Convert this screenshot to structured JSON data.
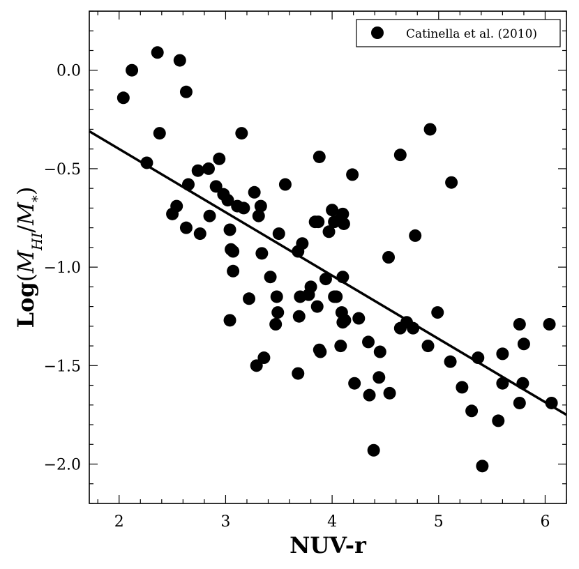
{
  "chart_data": {
    "type": "scatter",
    "title": "",
    "xlabel": "NUV-r",
    "ylabel": {
      "prefix": "Log",
      "open_paren": "(",
      "numerator": "M",
      "numerator_sub": "HI",
      "slash": "/",
      "denominator": "M",
      "denominator_sub": "*",
      "close_paren": ")"
    },
    "xlim": [
      1.72,
      6.2
    ],
    "ylim": [
      -2.2,
      0.3
    ],
    "xticks": [
      2,
      3,
      4,
      5,
      6
    ],
    "yticks": [
      0.0,
      -0.5,
      -1.0,
      -1.5,
      -2.0
    ],
    "xtick_labels": [
      "2",
      "3",
      "4",
      "5",
      "6"
    ],
    "ytick_labels": [
      "0.0",
      "−0.5",
      "−1.0",
      "−1.5",
      "−2.0"
    ],
    "series": [
      {
        "name": "Catinella et al. (2010)",
        "color": "#000000",
        "marker": "circle",
        "x": [
          2.04,
          2.12,
          2.36,
          2.57,
          2.63,
          2.38,
          2.26,
          2.5,
          2.54,
          2.63,
          2.65,
          2.74,
          2.76,
          2.84,
          2.85,
          2.91,
          2.94,
          2.98,
          3.02,
          3.04,
          3.05,
          3.07,
          3.07,
          3.04,
          3.11,
          3.15,
          3.17,
          3.22,
          3.27,
          3.31,
          3.33,
          3.34,
          3.36,
          3.42,
          3.47,
          3.48,
          3.49,
          3.5,
          3.56,
          3.29,
          3.68,
          3.69,
          3.7,
          3.72,
          3.78,
          3.8,
          3.84,
          3.86,
          3.88,
          3.89,
          3.94,
          3.97,
          4.0,
          4.02,
          4.04,
          4.07,
          4.09,
          4.1,
          4.11,
          4.12,
          4.19,
          4.21,
          4.25,
          4.34,
          4.35,
          4.39,
          4.44,
          4.45,
          4.53,
          4.54,
          4.64,
          4.64,
          4.7,
          4.76,
          4.78,
          4.9,
          4.92,
          4.99,
          5.11,
          5.12,
          5.22,
          5.31,
          5.37,
          5.41,
          5.56,
          5.6,
          5.6,
          5.76,
          5.76,
          5.79,
          5.8,
          6.04,
          6.06,
          3.88,
          4.08,
          4.1,
          3.87,
          4.02,
          4.1,
          3.68
        ],
        "y": [
          -0.14,
          0.0,
          0.09,
          0.05,
          -0.11,
          -0.32,
          -0.47,
          -0.73,
          -0.69,
          -0.8,
          -0.58,
          -0.51,
          -0.83,
          -0.5,
          -0.74,
          -0.59,
          -0.45,
          -0.63,
          -0.66,
          -0.81,
          -0.91,
          -0.92,
          -1.02,
          -1.27,
          -0.69,
          -0.32,
          -0.7,
          -1.16,
          -0.62,
          -0.74,
          -0.69,
          -0.93,
          -1.46,
          -1.05,
          -1.29,
          -1.15,
          -1.23,
          -0.83,
          -0.58,
          -1.5,
          -1.54,
          -1.25,
          -1.15,
          -0.88,
          -1.14,
          -1.1,
          -0.77,
          -1.2,
          -0.44,
          -1.43,
          -1.06,
          -0.82,
          -0.71,
          -0.77,
          -1.15,
          -0.76,
          -1.23,
          -0.73,
          -0.78,
          -1.27,
          -0.53,
          -1.59,
          -1.26,
          -1.38,
          -1.65,
          -1.93,
          -1.56,
          -1.43,
          -0.95,
          -1.64,
          -0.43,
          -1.31,
          -1.28,
          -1.31,
          -0.84,
          -1.4,
          -0.3,
          -1.23,
          -1.48,
          -0.57,
          -1.61,
          -1.73,
          -1.46,
          -2.01,
          -1.78,
          -1.59,
          -1.44,
          -1.69,
          -1.29,
          -1.59,
          -1.39,
          -1.29,
          -1.69,
          -1.42,
          -1.4,
          -1.05,
          -0.77,
          -1.15,
          -1.28,
          -0.92
        ]
      }
    ],
    "fit_line": {
      "x": [
        1.72,
        6.2
      ],
      "y": [
        -0.31,
        -1.75
      ],
      "color": "#000000"
    },
    "legend": {
      "label": "Catinella et al. (2010)",
      "placement": "top-right"
    }
  }
}
